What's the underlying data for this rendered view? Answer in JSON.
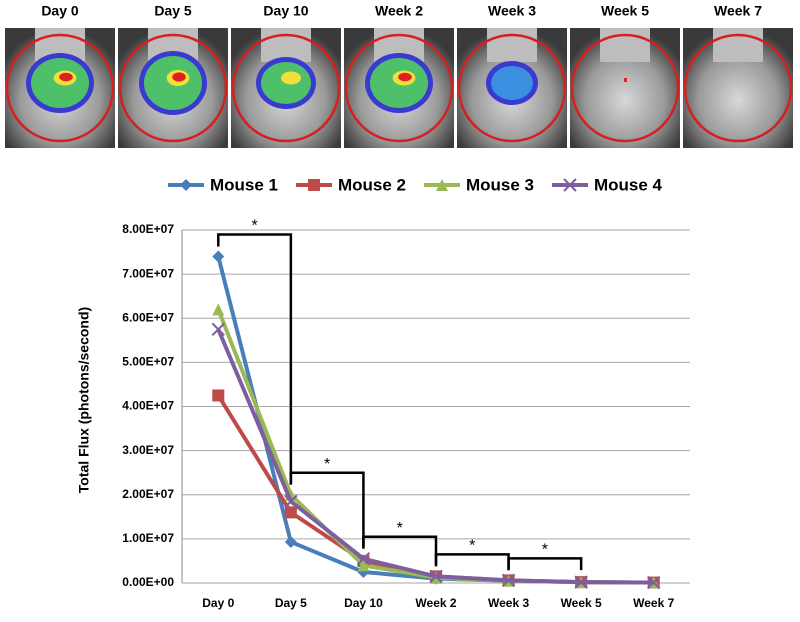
{
  "image_labels": [
    "Day 0",
    "Day 5",
    "Day 10",
    "Week 2",
    "Week 3",
    "Week 5",
    "Week 7"
  ],
  "chart_data": {
    "type": "line",
    "y_label": "Total Flux (photons/second)",
    "categories": [
      "Day 0",
      "Day 5",
      "Day 10",
      "Week 2",
      "Week 3",
      "Week 5",
      "Week 7"
    ],
    "series": [
      {
        "name": "Mouse 1",
        "color": "#4a7ebb",
        "marker": "diamond",
        "values": [
          74000000,
          9300000,
          2500000,
          1000000,
          500000,
          200000,
          100000
        ]
      },
      {
        "name": "Mouse 2",
        "color": "#be4b48",
        "marker": "square",
        "values": [
          42500000,
          16000000,
          5000000,
          1500000,
          600000,
          200000,
          100000
        ]
      },
      {
        "name": "Mouse 3",
        "color": "#98b954",
        "marker": "triangle",
        "values": [
          62000000,
          20000000,
          4000000,
          1200000,
          500000,
          200000,
          100000
        ]
      },
      {
        "name": "Mouse 4",
        "color": "#7d5fa0",
        "marker": "cross",
        "values": [
          57500000,
          18500000,
          5500000,
          1500000,
          600000,
          200000,
          100000
        ]
      }
    ],
    "ylim": [
      0,
      80000000
    ],
    "yticks": [
      {
        "value": 0,
        "label": "0.00E+00"
      },
      {
        "value": 10000000,
        "label": "1.00E+07"
      },
      {
        "value": 20000000,
        "label": "2.00E+07"
      },
      {
        "value": 30000000,
        "label": "3.00E+07"
      },
      {
        "value": 40000000,
        "label": "4.00E+07"
      },
      {
        "value": 50000000,
        "label": "5.00E+07"
      },
      {
        "value": 60000000,
        "label": "6.00E+07"
      },
      {
        "value": 70000000,
        "label": "7.00E+07"
      },
      {
        "value": 80000000,
        "label": "8.00E+07"
      }
    ],
    "grid": true,
    "legend": "top",
    "annotations": [
      {
        "text": "*",
        "from": "Day 0",
        "to": "Day 5"
      },
      {
        "text": "*",
        "from": "Day 5",
        "to": "Day 10"
      },
      {
        "text": "*",
        "from": "Day 10",
        "to": "Week 2"
      },
      {
        "text": "*",
        "from": "Week 2",
        "to": "Week 3"
      },
      {
        "text": "*",
        "from": "Week 3",
        "to": "Week 5"
      }
    ]
  }
}
